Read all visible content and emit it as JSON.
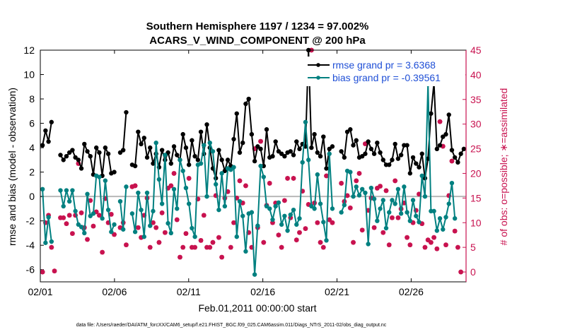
{
  "chart_data": {
    "type": "line",
    "title": "Southern Hemisphere 1197 / 1234 = 97.002%",
    "subtitle": "ACARS_V_WIND_COMPONENT @ 200 hPa",
    "xlabel": "Feb.01,2011 00:00:00 start",
    "ylabel": "rmse and bias (model - observation)",
    "ylabel_right": "# of obs: o=possible; ∗=assimilated",
    "footnote": "data file: /Users/raeder/DAI/ATM_forcXX/CAM6_setup/f.e21.FHIST_BGC.f09_025.CAM6assim.011/Diags_NTrS_2011-02/obs_diag_output.nc",
    "x_range_days": [
      0,
      28.7
    ],
    "xticks": [
      {
        "label": "02/01",
        "day": 0
      },
      {
        "label": "02/06",
        "day": 5
      },
      {
        "label": "02/11",
        "day": 10
      },
      {
        "label": "02/16",
        "day": 15
      },
      {
        "label": "02/21",
        "day": 20
      },
      {
        "label": "02/26",
        "day": 25
      }
    ],
    "ylim": [
      -7,
      12
    ],
    "yticks": [
      -6,
      -4,
      -2,
      0,
      2,
      4,
      6,
      8,
      10,
      12
    ],
    "ylim_right": [
      -2,
      45
    ],
    "yticks_right": [
      0,
      5,
      10,
      15,
      20,
      25,
      30,
      35,
      40,
      45
    ],
    "zero_line": 0,
    "legend_position": "top-right",
    "series": [
      {
        "name": "rmse grand pr = 3.6368",
        "color": "#000000",
        "axis": "left",
        "values": [
          4.2,
          5.4,
          4.5,
          6.1,
          null,
          null,
          3.4,
          3.0,
          3.3,
          3.6,
          3.8,
          3.2,
          3.0,
          2.3,
          4.3,
          3.7,
          3.3,
          1.8,
          4.0,
          3.6,
          1.7,
          4.0,
          3.5,
          1.9,
          2.0,
          null,
          3.6,
          3.8,
          6.9,
          null,
          2.6,
          2.5,
          5.3,
          4.3,
          4.8,
          3.2,
          4.0,
          2.7,
          3.5,
          2.4,
          3.8,
          3.0,
          3.6,
          2.7,
          4.1,
          3.4,
          3.0,
          5.1,
          4.0,
          2.6,
          4.6,
          3.3,
          3.0,
          5.3,
          3.5,
          5.9,
          4.0,
          2.3,
          1.5,
          3.8,
          3.0,
          2.1,
          3.0,
          2.5,
          4.7,
          6.8,
          3.6,
          4.4,
          7.6,
          8.0,
          5.1,
          2.9,
          4.1,
          3.9,
          2.5,
          5.5,
          3.2,
          3.3,
          4.5,
          3.7,
          3.5,
          3.3,
          3.6,
          3.7,
          3.4,
          4.5,
          3.9,
          4.3,
          4.1,
          12.0,
          4.0,
          5.1,
          3.6,
          3.3,
          4.9,
          2.3,
          3.9,
          4.1,
          null,
          null,
          3.7,
          3.2,
          5.3,
          5.5,
          4.2,
          4.6,
          3.2,
          3.3,
          3.5,
          4.5,
          3.9,
          3.5,
          4.4,
          3.6,
          3.0,
          2.6,
          2.6,
          3.0,
          4.3,
          3.1,
          3.4,
          4.2,
          4.2,
          1.9,
          3.2,
          2.7,
          2.4,
          3.5,
          1.5,
          3.1,
          6.8,
          9.3,
          3.9,
          4.2,
          4.9,
          5.1,
          6.7,
          3.8,
          3.2,
          2.8,
          3.5,
          3.9
        ]
      },
      {
        "name": "bias grand pr = -0.39561",
        "color": "#008080",
        "axis": "left",
        "values": [
          0.6,
          -3.8,
          -1.7,
          -3.7,
          null,
          null,
          0.5,
          -0.8,
          0.5,
          -0.4,
          0.5,
          -1.2,
          -2.3,
          -2.5,
          -3.0,
          0.2,
          -1.6,
          -1.4,
          1.7,
          1.6,
          -1.8,
          1.3,
          -1.1,
          -2.9,
          -2.3,
          null,
          -0.4,
          -2.7,
          0.8,
          null,
          -1.4,
          -2.9,
          0.3,
          -1.1,
          -3.3,
          0.3,
          -2.4,
          -1.2,
          4.4,
          1.4,
          -0.6,
          3.4,
          -2.2,
          -3.0,
          0.6,
          -1.0,
          3.0,
          2.1,
          0.7,
          -0.6,
          -2.6,
          -3.3,
          2.6,
          2.7,
          4.2,
          0.0,
          4.4,
          3.7,
          1.0,
          -1.1,
          1.9,
          -0.8,
          2.3,
          2.2,
          2.4,
          -3.3,
          -0.4,
          -1.6,
          -4.5,
          -1.4,
          -1.3,
          -6.4,
          -2.4,
          2.5,
          1.6,
          -0.8,
          -1.0,
          -1.9,
          -0.8,
          -0.5,
          -2.3,
          -1.6,
          -2.8,
          -1.5,
          -1.1,
          -2.3,
          -1.8,
          2.8,
          6.1,
          3.0,
          -0.8,
          -1.0,
          1.8,
          -0.6,
          -2.1,
          -3.6,
          3.5,
          -1.0,
          null,
          null,
          -1.3,
          -0.7,
          2.1,
          2.0,
          0.0,
          0.8,
          0.1,
          0.6,
          0.3,
          -3.9,
          0.7,
          -0.2,
          -2.0,
          -1.0,
          -0.3,
          -2.6,
          -1.3,
          -0.3,
          -0.6,
          0.6,
          -1.4,
          0.8,
          -1.3,
          -2.0,
          -0.3,
          -1.6,
          -2.1,
          1.7,
          0.0,
          9.2,
          -1.2,
          -1.2,
          -2.8,
          -1.8,
          -2.7,
          -1.7,
          -0.6,
          1.1,
          -1.8
        ]
      }
    ],
    "obs_possible": [
      0,
      10,
      11.5,
      5,
      0.2,
      null,
      11,
      11,
      9.8,
      11.5,
      7.8,
      11.5,
      22,
      12,
      9,
      6.6,
      14.5,
      9.3,
      12.2,
      11.5,
      4,
      14.9,
      10,
      11.7,
      7.6,
      null,
      9,
      10,
      5.5,
      null,
      17.3,
      17.5,
      9,
      7,
      11.5,
      15,
      5,
      10,
      9,
      6,
      12,
      8,
      17,
      17.5,
      20,
      10.6,
      3,
      5,
      7.8,
      19,
      5,
      5,
      14.8,
      6.4,
      11.5,
      5,
      5,
      6,
      15.5,
      7,
      3,
      15,
      16.3,
      5,
      10,
      15,
      18.5,
      14,
      17.5,
      8,
      5,
      25,
      9,
      26.5,
      6,
      13.5,
      18,
      10,
      14,
      7.5,
      5,
      14.5,
      19,
      11,
      19,
      6.5,
      8,
      16.4,
      8.8,
      13.7,
      45,
      14,
      10,
      6,
      5,
      19.5,
      10.6,
      10,
      null,
      null,
      18,
      14.3,
      15.5,
      13,
      6,
      18.5,
      20,
      8.5,
      26,
      12.5,
      15,
      9,
      17,
      17.4,
      8,
      16.5,
      5.5,
      11,
      18.5,
      11,
      12.8,
      14,
      7,
      5.5,
      10,
      12.5,
      15.8,
      9.8,
      5,
      6.5,
      6,
      7,
      4.7,
      30.5,
      25.5,
      5.5,
      15.5,
      22.5,
      8.3,
      5,
      0
    ],
    "obs_assimilated": [
      0,
      10,
      11.5,
      5,
      0.2,
      null,
      11,
      11,
      9.8,
      11.5,
      7.8,
      11.5,
      22,
      12,
      9,
      6.6,
      14.5,
      9.3,
      12.2,
      11.5,
      4,
      14.9,
      10,
      11.7,
      7.6,
      null,
      9,
      10,
      5.5,
      null,
      17.3,
      17.5,
      9,
      7,
      11.5,
      15,
      5,
      10,
      9,
      6,
      12,
      8,
      17,
      17.5,
      20,
      10.6,
      3,
      5,
      7.8,
      19,
      5,
      5,
      14.8,
      6.4,
      11.5,
      5,
      5,
      6,
      15.5,
      7,
      3,
      15,
      16.3,
      5,
      10,
      15,
      18.5,
      14,
      17.5,
      8,
      5,
      25,
      9,
      26.5,
      6,
      13.5,
      18,
      10,
      14,
      7.5,
      5,
      14.5,
      19,
      11,
      19,
      6.5,
      8,
      16.4,
      8.8,
      13.7,
      45,
      14,
      10,
      6,
      5,
      19.5,
      10.6,
      10,
      null,
      null,
      18,
      14.3,
      15.5,
      13,
      6,
      18.5,
      20,
      8.5,
      26,
      12.5,
      15,
      9,
      17,
      17.4,
      8,
      16.5,
      5.5,
      11,
      18.5,
      11,
      12.8,
      14,
      7,
      5.5,
      10,
      12.5,
      15.8,
      9.8,
      5,
      6.5,
      6,
      7,
      4.7,
      30.5,
      25.5,
      5.5,
      15.5,
      22.5,
      8.3,
      5,
      0
    ],
    "obs_color": "#c8124f"
  }
}
